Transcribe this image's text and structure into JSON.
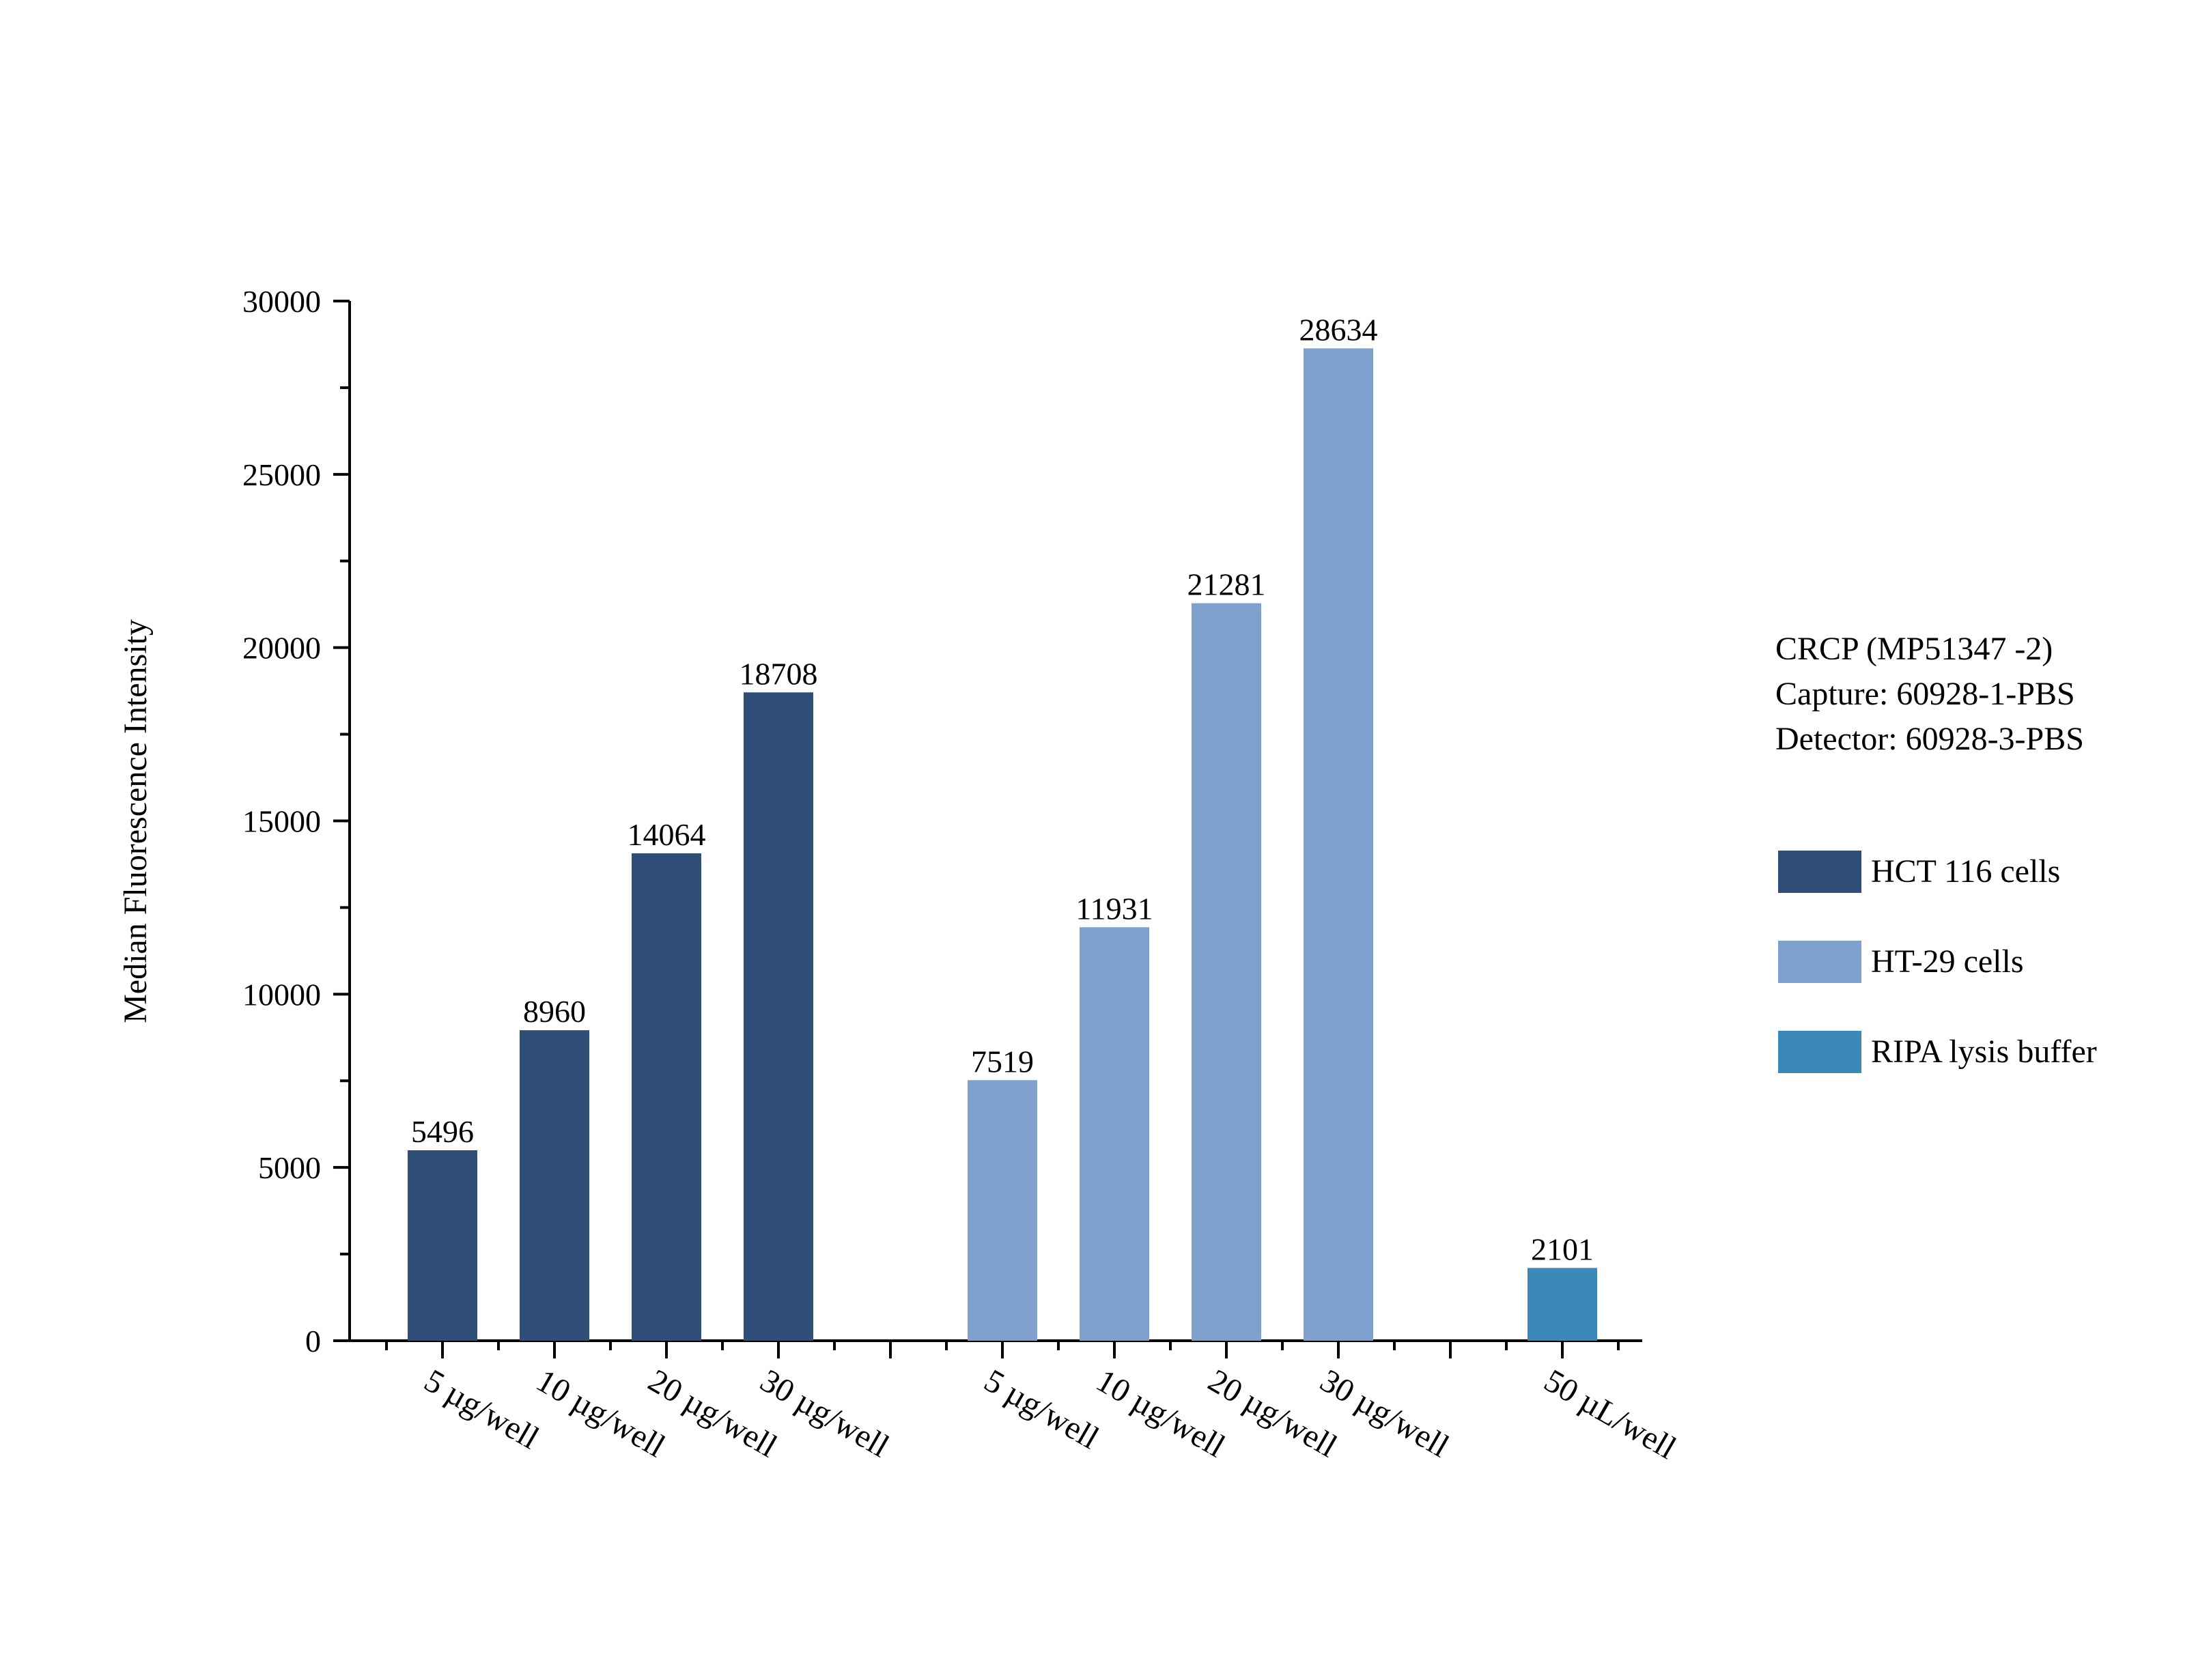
{
  "chart_data": {
    "type": "bar",
    "ylabel": "Median Fluorescence Intensity",
    "xlabel": "",
    "ylim": [
      0,
      30000
    ],
    "yticks": [
      0,
      5000,
      10000,
      15000,
      20000,
      25000,
      30000
    ],
    "grid": false,
    "legend_position": "right",
    "categories": [
      "5 µg/well",
      "10 µg/well",
      "20 µg/well",
      "30 µg/well",
      "",
      "5 µg/well",
      "10 µg/well",
      "20 µg/well",
      "30 µg/well",
      "",
      "50 µL/well"
    ],
    "series": [
      {
        "name": "HCT 116 cells",
        "color": "#2f4f78",
        "values": [
          5496,
          8960,
          14064,
          18708,
          null,
          null,
          null,
          null,
          null,
          null,
          null
        ]
      },
      {
        "name": "HT-29 cells",
        "color": "#7f9fcc",
        "values": [
          null,
          null,
          null,
          null,
          null,
          7519,
          11931,
          21281,
          28634,
          null,
          null
        ]
      },
      {
        "name": "RIPA lysis buffer",
        "color": "#3b88b9",
        "values": [
          null,
          null,
          null,
          null,
          null,
          null,
          null,
          null,
          null,
          null,
          2101
        ]
      }
    ],
    "annotation": {
      "lines": [
        "CRCP (MP51347 -2)",
        "Capture: 60928-1-PBS",
        "Detector: 60928-3-PBS"
      ]
    }
  }
}
